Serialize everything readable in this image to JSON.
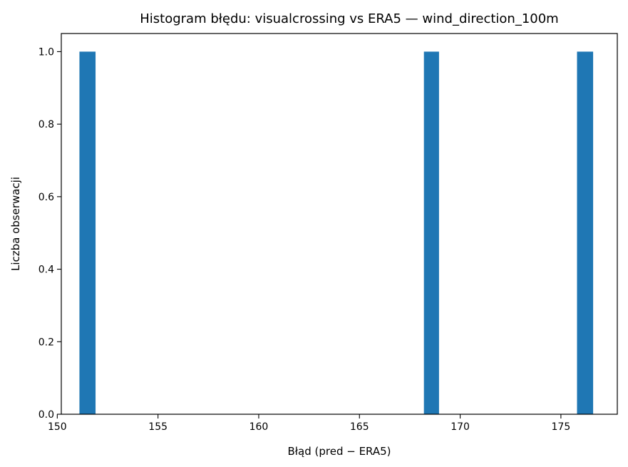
{
  "chart_data": {
    "type": "bar",
    "title": "Histogram błędu: visualcrossing vs ERA5 — wind_direction_100m",
    "xlabel": "Błąd (pred − ERA5)",
    "ylabel": "Liczba obserwacji",
    "xlim": [
      150.2,
      177.8
    ],
    "ylim": [
      0,
      1.05
    ],
    "x_ticks": [
      150,
      155,
      160,
      165,
      170,
      175
    ],
    "x_tick_labels": [
      "150",
      "155",
      "160",
      "165",
      "170",
      "175"
    ],
    "y_ticks": [
      0.0,
      0.2,
      0.4,
      0.6,
      0.8,
      1.0
    ],
    "y_tick_labels": [
      "0.0",
      "0.2",
      "0.4",
      "0.6",
      "0.8",
      "1.0"
    ],
    "bars": [
      {
        "x0": 151.1,
        "x1": 151.9,
        "value": 1
      },
      {
        "x0": 168.2,
        "x1": 168.95,
        "value": 1
      },
      {
        "x0": 175.8,
        "x1": 176.6,
        "value": 1
      }
    ],
    "bar_color": "#1f77b4",
    "grid": false,
    "legend": "none"
  }
}
